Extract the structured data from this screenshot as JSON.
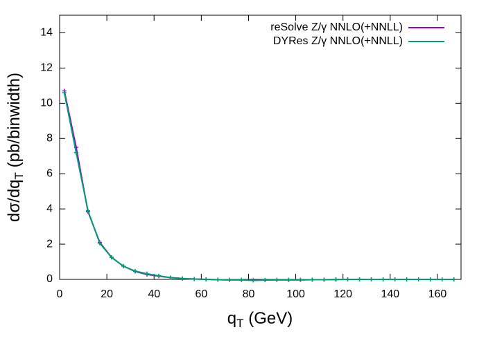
{
  "chart_data": {
    "type": "line",
    "xlabel": [
      "q",
      "T",
      " (GeV)"
    ],
    "ylabel": [
      "dσ/dq",
      "T",
      " (pb/binwidth)"
    ],
    "x": [
      2,
      7,
      12,
      17,
      22,
      27,
      32,
      37,
      42,
      47,
      52,
      57,
      62,
      67,
      72,
      77,
      82,
      87,
      92,
      97,
      102,
      107,
      112,
      117,
      122,
      127,
      132,
      137,
      142,
      147,
      152,
      157,
      162,
      167
    ],
    "series": [
      {
        "name": "reSolve Z/γ NNLO(+NNLL)",
        "color": "#9400d3",
        "values": [
          10.7,
          7.5,
          3.85,
          2.1,
          1.25,
          0.75,
          0.45,
          0.28,
          0.18,
          0.1,
          0.05,
          0.02,
          0.0,
          -0.02,
          -0.03,
          -0.03,
          -0.05,
          -0.04,
          -0.03,
          -0.03,
          -0.03,
          -0.02,
          -0.02,
          -0.01,
          0,
          0,
          0,
          0,
          0,
          0,
          0,
          0,
          0,
          0
        ]
      },
      {
        "name": "DYRes Z/γ NNLO(+NNLL)",
        "color": "#009e73",
        "values": [
          10.6,
          7.2,
          3.9,
          2.05,
          1.25,
          0.75,
          0.47,
          0.32,
          0.2,
          0.1,
          0.05,
          0.02,
          0.0,
          -0.02,
          -0.03,
          -0.03,
          -0.06,
          -0.04,
          -0.03,
          -0.03,
          -0.03,
          -0.02,
          -0.02,
          -0.01,
          0,
          0,
          0,
          0,
          0,
          0,
          0,
          0,
          0,
          0
        ]
      }
    ],
    "xlim": [
      0,
      170
    ],
    "ylim": [
      0,
      15
    ],
    "xticks": [
      0,
      20,
      40,
      60,
      80,
      100,
      120,
      140,
      160
    ],
    "yticks": [
      0,
      2,
      4,
      6,
      8,
      10,
      12,
      14
    ],
    "legend": "top-right"
  }
}
